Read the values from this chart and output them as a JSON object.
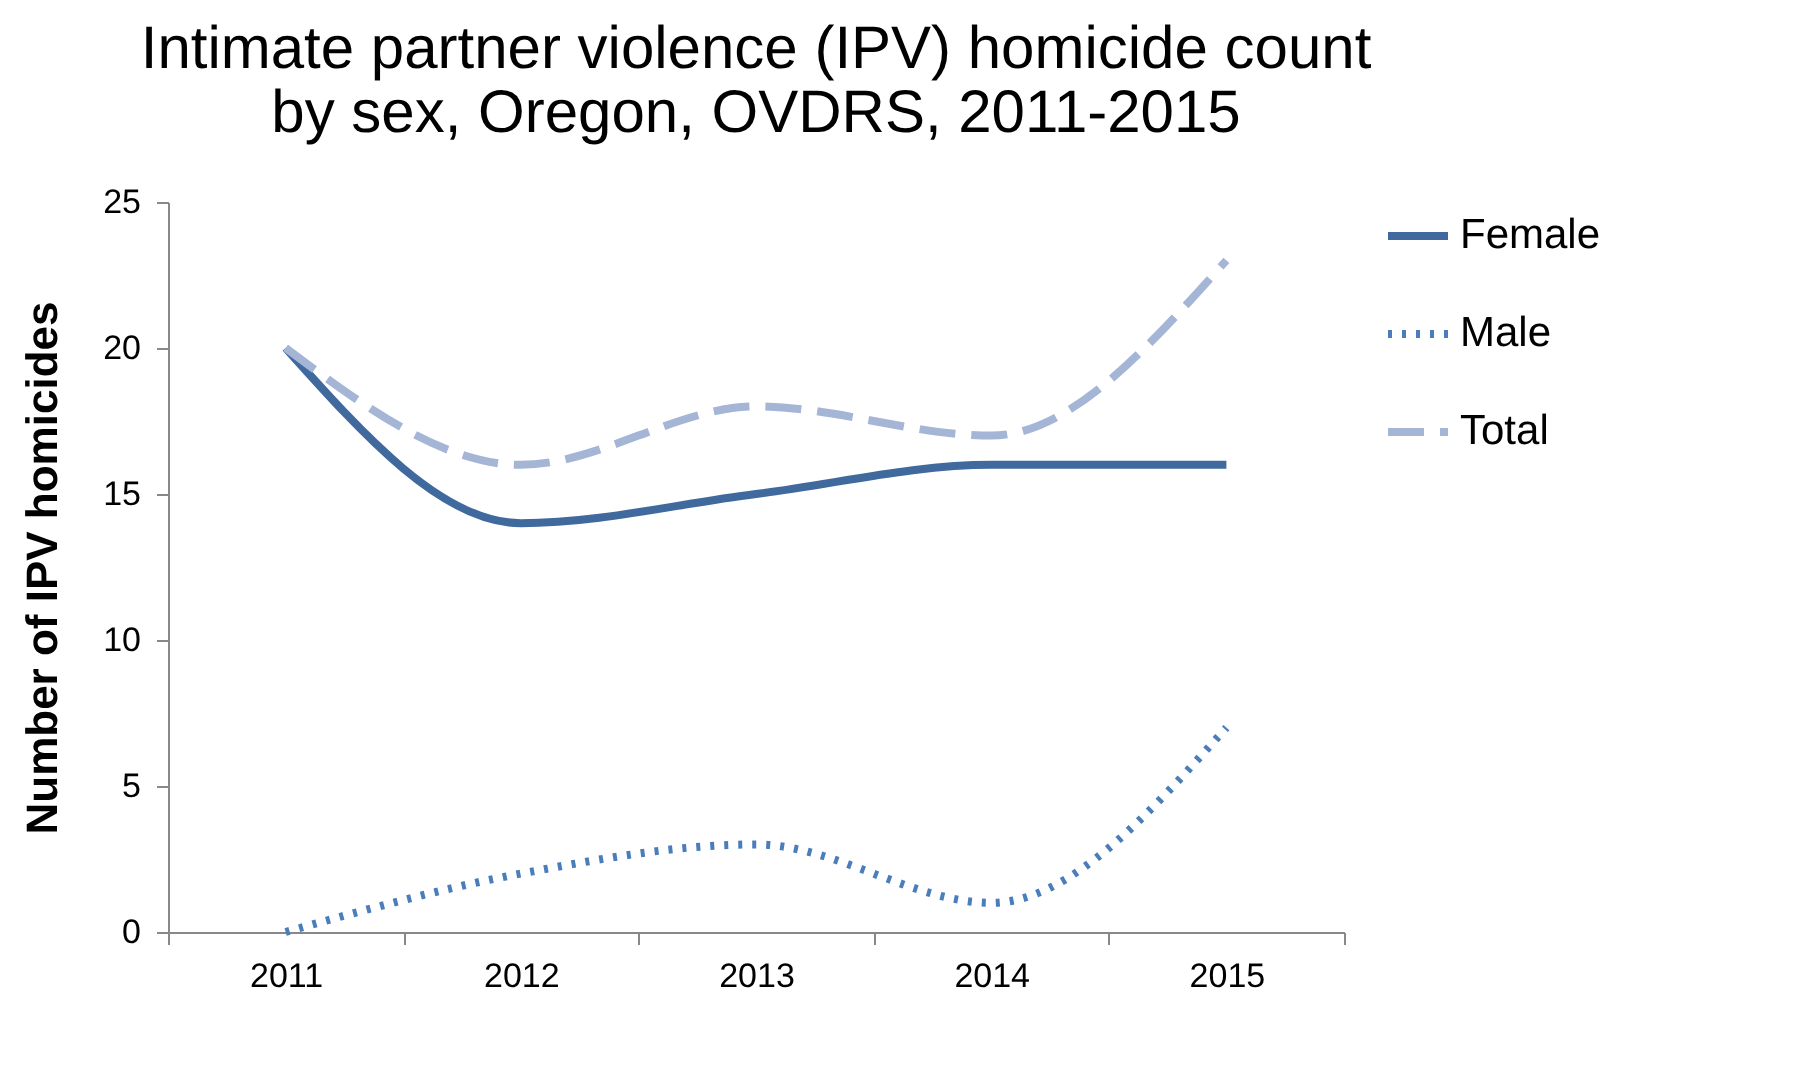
{
  "chart_data": {
    "type": "line",
    "title": "Intimate partner violence (IPV) homicide count\nby sex, Oregon, OVDRS, 2011-2015",
    "ylabel": "Number of IPV homicides",
    "categories": [
      "2011",
      "2012",
      "2013",
      "2014",
      "2015"
    ],
    "series": [
      {
        "name": "Female",
        "color": "#40699e",
        "line_style": "solid",
        "values": [
          20,
          14,
          15,
          16,
          16
        ]
      },
      {
        "name": "Male",
        "color": "#4a7ebb",
        "line_style": "dotted",
        "values": [
          0,
          2,
          3,
          1,
          7
        ]
      },
      {
        "name": "Total",
        "color": "#a5b5d5",
        "line_style": "dashed",
        "values": [
          20,
          16,
          18,
          17,
          23
        ]
      }
    ],
    "ylim": [
      0,
      25
    ],
    "yticks": [
      0,
      5,
      10,
      15,
      20,
      25
    ],
    "legend": "right"
  }
}
